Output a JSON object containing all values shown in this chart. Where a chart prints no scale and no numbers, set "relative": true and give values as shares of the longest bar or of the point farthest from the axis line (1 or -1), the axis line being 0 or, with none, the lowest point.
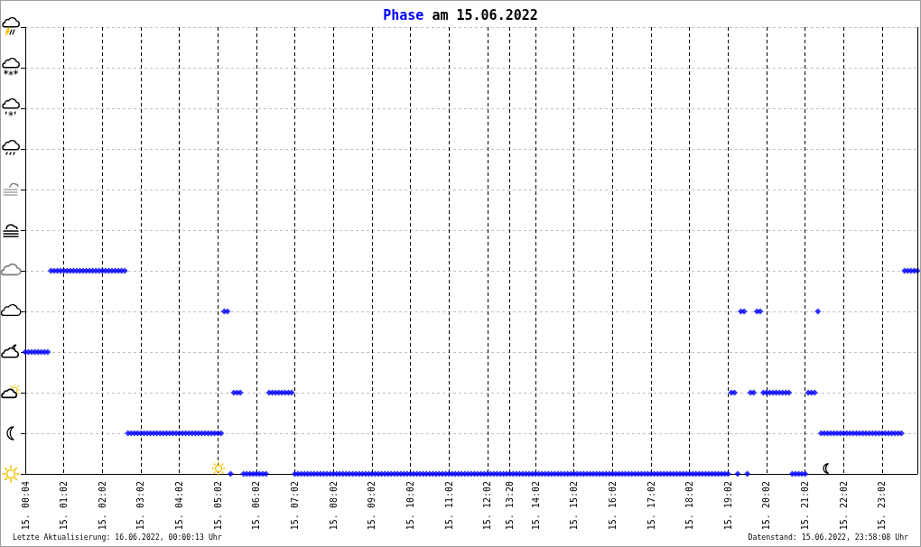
{
  "chart_data": {
    "type": "scatter",
    "title": "Phase am 15.06.2022",
    "annotations": [
      "Letzte Aktualisierung: 16.06.2022, 00:00:13 Uhr",
      "Datenstand: 15.06.2022, 23:58:08 Uhr"
    ],
    "categories": [
      "15. 00:04",
      null,
      null,
      null,
      null,
      null,
      null,
      null,
      null,
      null,
      null,
      null,
      "15. 01:02",
      null,
      null,
      null,
      null,
      null,
      null,
      null,
      null,
      null,
      null,
      null,
      "15. 02:02",
      null,
      null,
      null,
      null,
      null,
      null,
      null,
      null,
      null,
      null,
      null,
      "15. 03:02",
      null,
      null,
      null,
      null,
      null,
      null,
      null,
      null,
      null,
      null,
      null,
      "15. 04:02",
      null,
      null,
      null,
      null,
      null,
      null,
      null,
      null,
      null,
      null,
      null,
      "15. 05:02",
      null,
      null,
      null,
      null,
      null,
      null,
      null,
      null,
      null,
      null,
      null,
      "15. 06:02",
      null,
      null,
      null,
      null,
      null,
      null,
      null,
      null,
      null,
      null,
      null,
      "15. 07:02",
      null,
      null,
      null,
      null,
      null,
      null,
      null,
      null,
      null,
      null,
      null,
      "15. 08:02",
      null,
      null,
      null,
      null,
      null,
      null,
      null,
      null,
      null,
      null,
      null,
      "15. 09:02",
      null,
      null,
      null,
      null,
      null,
      null,
      null,
      null,
      null,
      null,
      null,
      "15. 10:02",
      null,
      null,
      null,
      null,
      null,
      null,
      null,
      null,
      null,
      null,
      null,
      "15. 11:02",
      null,
      null,
      null,
      null,
      null,
      null,
      null,
      null,
      null,
      null,
      null,
      "15. 12:02",
      null,
      null,
      null,
      null,
      null,
      null,
      "15. 13:20",
      null,
      null,
      null,
      null,
      null,
      null,
      null,
      "15. 14:02",
      null,
      null,
      null,
      null,
      null,
      null,
      null,
      null,
      null,
      null,
      null,
      "15. 15:02",
      null,
      null,
      null,
      null,
      null,
      null,
      null,
      null,
      null,
      null,
      null,
      "15. 16:02",
      null,
      null,
      null,
      null,
      null,
      null,
      null,
      null,
      null,
      null,
      null,
      "15. 17:02",
      null,
      null,
      null,
      null,
      null,
      null,
      null,
      null,
      null,
      null,
      null,
      "15. 18:02",
      null,
      null,
      null,
      null,
      null,
      null,
      null,
      null,
      null,
      null,
      null,
      "15. 19:02",
      null,
      null,
      null,
      null,
      null,
      null,
      null,
      null,
      null,
      null,
      null,
      "15. 20:02",
      null,
      null,
      null,
      null,
      null,
      null,
      null,
      null,
      null,
      null,
      null,
      "15. 21:02",
      null,
      null,
      null,
      null,
      null,
      null,
      null,
      null,
      null,
      null,
      null,
      "15. 22:02",
      null,
      null,
      null,
      null,
      null,
      null,
      null,
      null,
      null,
      null,
      null,
      "15. 23:02",
      null,
      null,
      null,
      null,
      null,
      null,
      null,
      null,
      null,
      null,
      null
    ],
    "values": [
      0.6,
      0.6,
      0.6,
      0.6,
      0.6,
      0.6,
      0.6,
      0.6,
      1,
      1,
      1,
      1,
      1,
      1,
      1,
      1,
      1,
      1,
      1,
      1,
      1,
      1,
      1,
      1,
      1,
      1,
      1,
      1,
      1,
      1,
      1,
      1,
      0.2,
      0.2,
      0.2,
      0.2,
      0.2,
      0.2,
      0.2,
      0.2,
      0.2,
      0.2,
      0.2,
      0.2,
      0.2,
      0.2,
      0.2,
      0.2,
      0.2,
      0.2,
      0.2,
      0.2,
      0.2,
      0.2,
      0.2,
      0.2,
      0.2,
      0.2,
      0.2,
      0.2,
      0.2,
      0.2,
      0.8,
      0.8,
      0,
      0.4,
      0.4,
      0.4,
      0,
      0,
      0,
      0,
      0,
      0,
      0,
      0,
      0.4,
      0.4,
      0.4,
      0.4,
      0.4,
      0.4,
      0.4,
      0.4,
      0,
      0,
      0,
      0,
      0,
      0,
      0,
      0,
      0,
      0,
      0,
      0,
      0,
      0,
      0,
      0,
      0,
      0,
      0,
      0,
      0,
      0,
      0,
      0,
      0,
      0,
      0,
      0,
      0,
      0,
      0,
      0,
      0,
      0,
      0,
      0,
      0,
      0,
      0,
      0,
      0,
      0,
      0,
      0,
      0,
      0,
      0,
      0,
      0,
      0,
      0,
      0,
      0,
      0,
      0,
      0,
      0,
      0,
      0,
      0,
      0,
      0,
      0,
      0,
      0,
      0,
      0,
      0,
      0,
      0,
      0,
      0,
      0,
      0,
      0,
      0,
      0,
      0,
      0,
      0,
      0,
      0,
      0,
      0,
      0,
      0,
      0,
      0,
      0,
      0,
      0,
      0,
      0,
      0,
      0,
      0,
      0,
      0,
      0,
      0,
      0,
      0,
      0,
      0,
      0,
      0,
      0,
      0,
      0,
      0,
      0,
      0,
      0,
      0,
      0,
      0,
      0,
      0,
      0,
      0,
      0,
      0,
      0,
      0,
      0,
      0,
      0,
      0,
      0,
      0,
      0,
      0,
      0,
      0,
      0,
      0,
      0.4,
      0.4,
      0,
      0.8,
      0.8,
      0,
      0.4,
      0.4,
      0.8,
      0.8,
      0.4,
      0.4,
      0.4,
      0.4,
      0.4,
      0.4,
      0.4,
      0.4,
      0.4,
      0,
      0,
      0,
      0,
      0,
      0.4,
      0.4,
      0.4,
      0.8,
      0.2,
      0.2,
      0.2,
      0.2,
      0.2,
      0.2,
      0.2,
      0.2,
      0.2,
      0.2,
      0.2,
      0.2,
      0.2,
      0.2,
      0.2,
      0.2,
      0.2,
      0.2,
      0.2,
      0.2,
      0.2,
      0.2,
      0.2,
      0.2,
      0.2,
      0.2,
      1,
      1,
      1,
      1,
      1
    ],
    "color": "#0000ff",
    "marker": "diamond",
    "relative": true,
    "grid": true
  }
}
